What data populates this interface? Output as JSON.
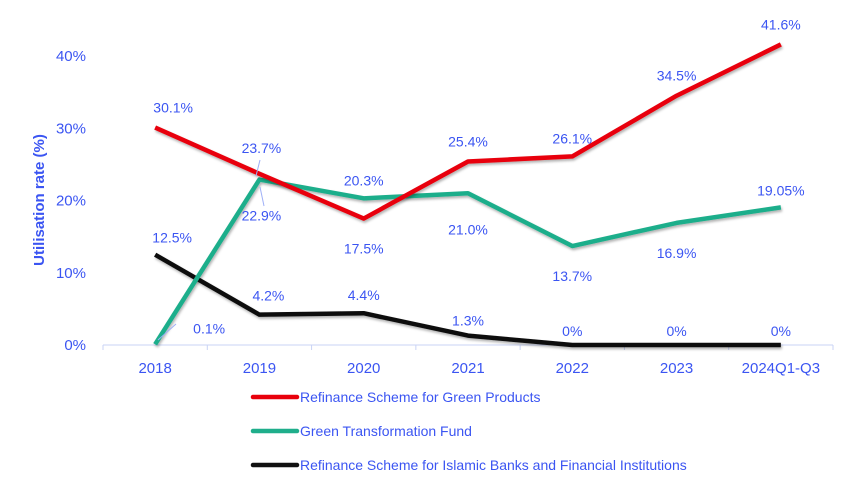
{
  "chart_data": {
    "type": "line",
    "title": "",
    "xlabel": "",
    "ylabel": "Utilisation rate (%)",
    "ylim": [
      0,
      40
    ],
    "yticks": [
      "0%",
      "10%",
      "20%",
      "30%",
      "40%"
    ],
    "categories": [
      "2018",
      "2019",
      "2020",
      "2021",
      "2022",
      "2023",
      "2024Q1-Q3"
    ],
    "legend_position": "bottom",
    "grid": false,
    "series": [
      {
        "name": "Refinance Scheme for Green Products",
        "color": "#e8000b",
        "values": [
          30.1,
          23.7,
          17.5,
          25.4,
          26.1,
          34.5,
          41.6
        ],
        "labels": [
          "30.1%",
          "23.7%",
          "17.5%",
          "25.4%",
          "26.1%",
          "34.5%",
          "41.6%"
        ]
      },
      {
        "name": "Green Transformation Fund",
        "color": "#1fae8b",
        "values": [
          0.1,
          22.9,
          20.3,
          21.0,
          13.7,
          16.9,
          19.05
        ],
        "labels": [
          "0.1%",
          "22.9%",
          "20.3%",
          "21.0%",
          "13.7%",
          "16.9%",
          "19.05%"
        ]
      },
      {
        "name": "Refinance Scheme for Islamic Banks and Financial Institutions",
        "color": "#111111",
        "values": [
          12.5,
          4.2,
          4.4,
          1.3,
          0,
          0,
          0
        ],
        "labels": [
          "12.5%",
          "4.2%",
          "4.4%",
          "1.3%",
          "0%",
          "0%",
          "0%"
        ]
      }
    ]
  }
}
